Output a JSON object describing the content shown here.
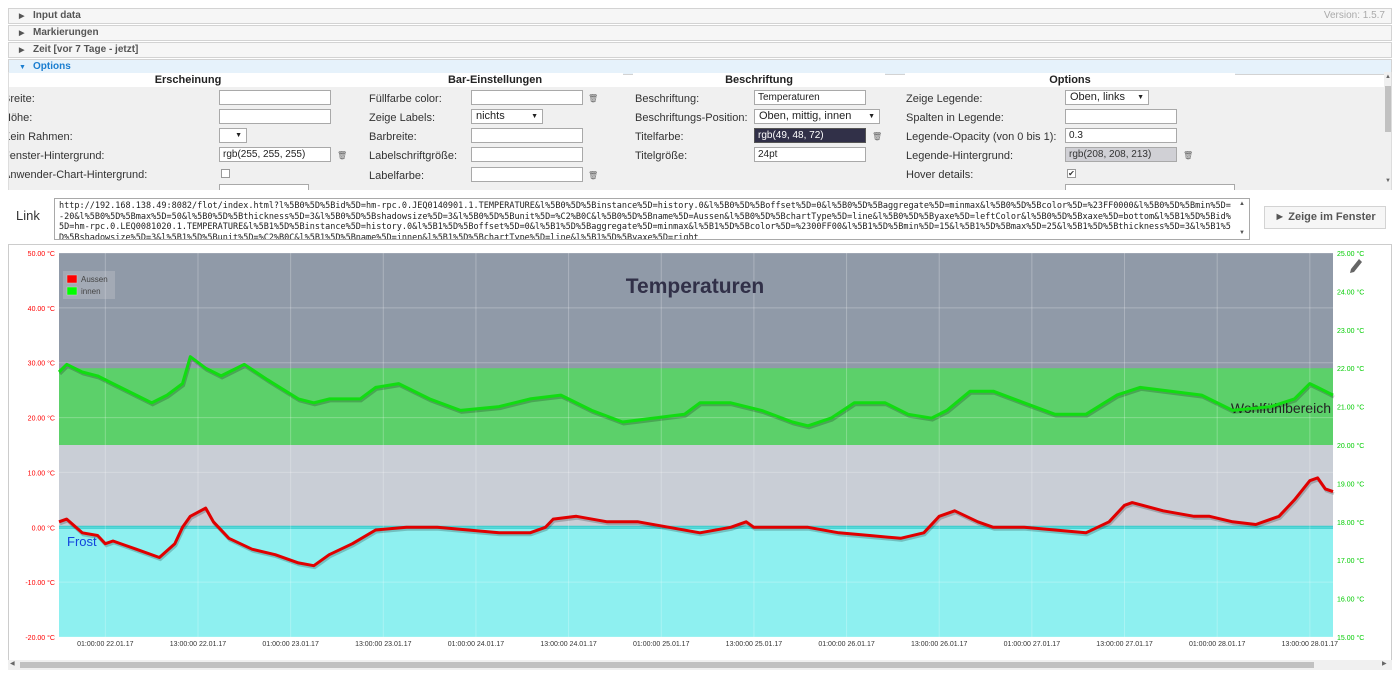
{
  "version": "Version: 1.5.7",
  "accordion": [
    {
      "label": "Input data"
    },
    {
      "label": "Markierungen"
    },
    {
      "label": "Zeit [vor 7 Tage - jetzt]"
    },
    {
      "label": "Options"
    }
  ],
  "columns": {
    "erscheinung": "Erscheinung",
    "bar": "Bar-Einstellungen",
    "beschriftung": "Beschriftung",
    "options": "Options"
  },
  "erscheinung": {
    "breite": "Breite:",
    "hoehe": "Höhe:",
    "kein_rahmen": "Kein Rahmen:",
    "fenster_hg": "Fenster-Hintergrund:",
    "fenster_hg_value": "rgb(255, 255, 255)",
    "anwender_hg": "Anwender-Chart-Hintergrund:"
  },
  "bar": {
    "fuellfarbe": "Füllfarbe color:",
    "zeige_labels": "Zeige Labels:",
    "zeige_labels_value": "nichts",
    "barbreite": "Barbreite:",
    "labelschrift": "Labelschriftgröße:",
    "labelfarbe": "Labelfarbe:"
  },
  "beschriftung": {
    "beschriftung": "Beschriftung:",
    "beschriftung_value": "Temperaturen",
    "position": "Beschriftungs-Position:",
    "position_value": "Oben, mittig, innen",
    "titelfarbe": "Titelfarbe:",
    "titelfarbe_value": "rgb(49, 48, 72)",
    "titelgroesse": "Titelgröße:",
    "titelgroesse_value": "24pt"
  },
  "options": {
    "zeige_legende": "Zeige Legende:",
    "zeige_legende_value": "Oben, links",
    "spalten": "Spalten in Legende:",
    "opacity": "Legende-Opacity (von 0 bis 1):",
    "opacity_value": "0.3",
    "legende_hg": "Legende-Hintergrund:",
    "legende_hg_value": "rgb(208, 208, 213)",
    "hover": "Hover details:"
  },
  "link": {
    "label": "Link",
    "url": "http://192.168.138.49:8082/flot/index.html?l%5B0%5D%5Bid%5D=hm-rpc.0.JEQ0140901.1.TEMPERATURE&l%5B0%5D%5Binstance%5D=history.0&l%5B0%5D%5Boffset%5D=0&l%5B0%5D%5Baggregate%5D=minmax&l%5B0%5D%5Bcolor%5D=%23FF0000&l%5B0%5D%5Bmin%5D=-20&l%5B0%5D%5Bmax%5D=50&l%5B0%5D%5Bthickness%5D=3&l%5B0%5D%5Bshadowsize%5D=3&l%5B0%5D%5Bunit%5D=%C2%B0C&l%5B0%5D%5Bname%5D=Aussen&l%5B0%5D%5BchartType%5D=line&l%5B0%5D%5Byaxe%5D=leftColor&l%5B0%5D%5Bxaxe%5D=bottom&l%5B1%5D%5Bid%5D=hm-rpc.0.LEQ0081020.1.TEMPERATURE&l%5B1%5D%5Binstance%5D=history.0&l%5B1%5D%5Boffset%5D=0&l%5B1%5D%5Baggregate%5D=minmax&l%5B1%5D%5Bcolor%5D=%2300FF00&l%5B1%5D%5Bmin%5D=15&l%5B1%5D%5Bmax%5D=25&l%5B1%5D%5Bthickness%5D=3&l%5B1%5D%5Bshadowsize%5D=3&l%5B1%5D%5Bunit%5D=%C2%B0C&l%5B1%5D%5Bname%5D=innen&l%5B1%5D%5BchartType%5D=line&l%5B1%5D%5Byaxe%5D=right"
  },
  "show_button": "► Zeige im Fenster",
  "chart_data": {
    "type": "line",
    "title": "Temperaturen",
    "title_color": "#313048",
    "legend": {
      "position": "top-left",
      "entries": [
        {
          "name": "Aussen",
          "color": "#ff0000"
        },
        {
          "name": "innen",
          "color": "#00ff00"
        }
      ]
    },
    "y_left": {
      "min": -20,
      "max": 50,
      "ticks": [
        "-20.00 °C",
        "-10.00 °C",
        "0.00 °C",
        "10.00 °C",
        "20.00 °C",
        "30.00 °C",
        "40.00 °C",
        "50.00 °C"
      ],
      "color": "#ff0000"
    },
    "y_right": {
      "min": 15,
      "max": 25,
      "ticks": [
        "15.00 °C",
        "16.00 °C",
        "17.00 °C",
        "18.00 °C",
        "19.00 °C",
        "20.00 °C",
        "21.00 °C",
        "22.00 °C",
        "23.00 °C",
        "24.00 °C",
        "25.00 °C"
      ],
      "color": "#00cc00"
    },
    "x_range": [
      "2017-01-21T19:00",
      "2017-01-28T16:00"
    ],
    "x_ticks": [
      {
        "t": "2017-01-22T01:00",
        "label": "01:00:00 22.01.17"
      },
      {
        "t": "2017-01-22T13:00",
        "label": "13:00:00 22.01.17"
      },
      {
        "t": "2017-01-23T01:00",
        "label": "01:00:00 23.01.17"
      },
      {
        "t": "2017-01-23T13:00",
        "label": "13:00:00 23.01.17"
      },
      {
        "t": "2017-01-24T01:00",
        "label": "01:00:00 24.01.17"
      },
      {
        "t": "2017-01-24T13:00",
        "label": "13:00:00 24.01.17"
      },
      {
        "t": "2017-01-25T01:00",
        "label": "01:00:00 25.01.17"
      },
      {
        "t": "2017-01-25T13:00",
        "label": "13:00:00 25.01.17"
      },
      {
        "t": "2017-01-26T01:00",
        "label": "01:00:00 26.01.17"
      },
      {
        "t": "2017-01-26T13:00",
        "label": "13:00:00 26.01.17"
      },
      {
        "t": "2017-01-27T01:00",
        "label": "01:00:00 27.01.17"
      },
      {
        "t": "2017-01-27T13:00",
        "label": "13:00:00 27.01.17"
      },
      {
        "t": "2017-01-28T01:00",
        "label": "01:00:00 28.01.17"
      },
      {
        "t": "2017-01-28T13:00",
        "label": "13:00:00 28.01.17"
      }
    ],
    "bands": [
      {
        "label": "Wohlfühlbereich",
        "axis": "left",
        "from": 15,
        "to": 29,
        "color": "#5cd06a"
      },
      {
        "label": "Frost",
        "axis": "left",
        "from": -20,
        "to": 0,
        "color": "#8ef0f0"
      }
    ],
    "series": [
      {
        "name": "Aussen",
        "axis": "left",
        "color": "#e00000",
        "points": [
          [
            "2017-01-21T19:00",
            1
          ],
          [
            "2017-01-21T20:00",
            1.5
          ],
          [
            "2017-01-21T22:00",
            -1
          ],
          [
            "2017-01-22T00:00",
            -1.5
          ],
          [
            "2017-01-22T01:00",
            -3
          ],
          [
            "2017-01-22T02:00",
            -2.5
          ],
          [
            "2017-01-22T05:00",
            -4
          ],
          [
            "2017-01-22T08:00",
            -5.5
          ],
          [
            "2017-01-22T10:00",
            -3
          ],
          [
            "2017-01-22T11:00",
            0
          ],
          [
            "2017-01-22T12:00",
            2
          ],
          [
            "2017-01-22T14:00",
            3.5
          ],
          [
            "2017-01-22T15:00",
            1
          ],
          [
            "2017-01-22T17:00",
            -2
          ],
          [
            "2017-01-22T20:00",
            -4
          ],
          [
            "2017-01-22T23:00",
            -5
          ],
          [
            "2017-01-23T02:00",
            -6.5
          ],
          [
            "2017-01-23T04:00",
            -7
          ],
          [
            "2017-01-23T06:00",
            -5
          ],
          [
            "2017-01-23T09:00",
            -3
          ],
          [
            "2017-01-23T12:00",
            -0.5
          ],
          [
            "2017-01-23T16:00",
            0
          ],
          [
            "2017-01-23T20:00",
            0
          ],
          [
            "2017-01-24T00:00",
            -0.5
          ],
          [
            "2017-01-24T04:00",
            -1
          ],
          [
            "2017-01-24T08:00",
            -1
          ],
          [
            "2017-01-24T10:00",
            0
          ],
          [
            "2017-01-24T11:00",
            1.5
          ],
          [
            "2017-01-24T14:00",
            2
          ],
          [
            "2017-01-24T18:00",
            1
          ],
          [
            "2017-01-24T22:00",
            1
          ],
          [
            "2017-01-25T02:00",
            0
          ],
          [
            "2017-01-25T06:00",
            -1
          ],
          [
            "2017-01-25T10:00",
            0
          ],
          [
            "2017-01-25T12:00",
            1
          ],
          [
            "2017-01-25T13:00",
            0
          ],
          [
            "2017-01-25T16:00",
            0
          ],
          [
            "2017-01-25T20:00",
            0
          ],
          [
            "2017-01-26T00:00",
            -1
          ],
          [
            "2017-01-26T04:00",
            -1.5
          ],
          [
            "2017-01-26T08:00",
            -2
          ],
          [
            "2017-01-26T11:00",
            -1
          ],
          [
            "2017-01-26T13:00",
            2
          ],
          [
            "2017-01-26T15:00",
            3
          ],
          [
            "2017-01-26T18:00",
            1
          ],
          [
            "2017-01-26T20:00",
            0
          ],
          [
            "2017-01-27T00:00",
            0
          ],
          [
            "2017-01-27T04:00",
            -0.5
          ],
          [
            "2017-01-27T08:00",
            -1
          ],
          [
            "2017-01-27T11:00",
            1
          ],
          [
            "2017-01-27T13:00",
            4
          ],
          [
            "2017-01-27T14:00",
            4.5
          ],
          [
            "2017-01-27T18:00",
            3
          ],
          [
            "2017-01-27T22:00",
            2
          ],
          [
            "2017-01-28T00:00",
            2
          ],
          [
            "2017-01-28T03:00",
            1
          ],
          [
            "2017-01-28T06:00",
            0.5
          ],
          [
            "2017-01-28T09:00",
            2
          ],
          [
            "2017-01-28T11:00",
            5
          ],
          [
            "2017-01-28T13:00",
            8.5
          ],
          [
            "2017-01-28T14:00",
            9
          ],
          [
            "2017-01-28T15:00",
            7
          ],
          [
            "2017-01-28T16:00",
            6.5
          ]
        ]
      },
      {
        "name": "innen",
        "axis": "right",
        "color": "#11dd11",
        "points": [
          [
            "2017-01-21T19:00",
            21.9
          ],
          [
            "2017-01-21T20:00",
            22.1
          ],
          [
            "2017-01-21T22:00",
            21.9
          ],
          [
            "2017-01-22T00:00",
            21.8
          ],
          [
            "2017-01-22T02:00",
            21.6
          ],
          [
            "2017-01-22T05:00",
            21.3
          ],
          [
            "2017-01-22T07:00",
            21.1
          ],
          [
            "2017-01-22T09:00",
            21.3
          ],
          [
            "2017-01-22T11:00",
            21.6
          ],
          [
            "2017-01-22T12:00",
            22.3
          ],
          [
            "2017-01-22T14:00",
            22
          ],
          [
            "2017-01-22T16:00",
            21.8
          ],
          [
            "2017-01-22T19:00",
            22.1
          ],
          [
            "2017-01-22T22:00",
            21.7
          ],
          [
            "2017-01-23T02:00",
            21.2
          ],
          [
            "2017-01-23T04:00",
            21.1
          ],
          [
            "2017-01-23T06:00",
            21.2
          ],
          [
            "2017-01-23T10:00",
            21.2
          ],
          [
            "2017-01-23T12:00",
            21.5
          ],
          [
            "2017-01-23T15:00",
            21.6
          ],
          [
            "2017-01-23T19:00",
            21.2
          ],
          [
            "2017-01-23T23:00",
            20.9
          ],
          [
            "2017-01-24T04:00",
            21
          ],
          [
            "2017-01-24T08:00",
            21.2
          ],
          [
            "2017-01-24T12:00",
            21.3
          ],
          [
            "2017-01-24T16:00",
            20.9
          ],
          [
            "2017-01-24T20:00",
            20.6
          ],
          [
            "2017-01-25T00:00",
            20.7
          ],
          [
            "2017-01-25T04:00",
            20.8
          ],
          [
            "2017-01-25T06:00",
            21.1
          ],
          [
            "2017-01-25T10:00",
            21.1
          ],
          [
            "2017-01-25T14:00",
            20.9
          ],
          [
            "2017-01-25T18:00",
            20.6
          ],
          [
            "2017-01-25T20:00",
            20.5
          ],
          [
            "2017-01-25T23:00",
            20.7
          ],
          [
            "2017-01-26T02:00",
            21.1
          ],
          [
            "2017-01-26T06:00",
            21.1
          ],
          [
            "2017-01-26T09:00",
            20.8
          ],
          [
            "2017-01-26T12:00",
            20.7
          ],
          [
            "2017-01-26T14:00",
            20.9
          ],
          [
            "2017-01-26T17:00",
            21.4
          ],
          [
            "2017-01-26T20:00",
            21.4
          ],
          [
            "2017-01-27T00:00",
            21.1
          ],
          [
            "2017-01-27T04:00",
            20.8
          ],
          [
            "2017-01-27T08:00",
            20.8
          ],
          [
            "2017-01-27T12:00",
            21.3
          ],
          [
            "2017-01-27T15:00",
            21.5
          ],
          [
            "2017-01-27T19:00",
            21.4
          ],
          [
            "2017-01-27T23:00",
            21.3
          ],
          [
            "2017-01-28T03:00",
            20.9
          ],
          [
            "2017-01-28T08:00",
            21
          ],
          [
            "2017-01-28T11:00",
            21.2
          ],
          [
            "2017-01-28T13:00",
            21.6
          ],
          [
            "2017-01-28T14:00",
            21.5
          ],
          [
            "2017-01-28T15:00",
            21.4
          ],
          [
            "2017-01-28T16:00",
            21.3
          ]
        ]
      }
    ]
  }
}
